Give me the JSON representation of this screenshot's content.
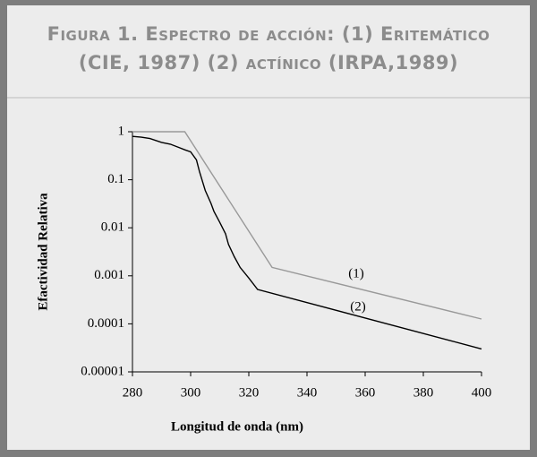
{
  "chart_data": {
    "type": "line",
    "title": [
      "Figura 1. Espectro de acción: (1) Eritemático",
      "(CIE, 1987) (2) actínico (IRPA,1989)"
    ],
    "xlabel": "Longitud de onda (nm)",
    "ylabel": "Efactividad Relativa",
    "xlim": [
      280,
      400
    ],
    "xticks": [
      280,
      300,
      320,
      340,
      360,
      380,
      400
    ],
    "ylim": [
      1e-05,
      1
    ],
    "yticks": [
      1,
      0.1,
      0.01,
      0.001,
      0.0001,
      1e-05
    ],
    "log_y": true,
    "series": [
      {
        "name": "(1)",
        "color": "#999999",
        "x": [
          280,
          298,
          328,
          400
        ],
        "values": [
          1,
          1,
          0.0015,
          0.000126
        ]
      },
      {
        "name": "(2)",
        "color": "#000000",
        "x": [
          280,
          283,
          286,
          290,
          293,
          296,
          298,
          300,
          302,
          303,
          305,
          307,
          308,
          310,
          312,
          313,
          315,
          317,
          320,
          323,
          400
        ],
        "values": [
          0.8,
          0.77,
          0.72,
          0.6,
          0.55,
          0.47,
          0.42,
          0.38,
          0.26,
          0.15,
          0.06,
          0.032,
          0.022,
          0.013,
          0.0075,
          0.0045,
          0.0025,
          0.0015,
          0.0009,
          0.00052,
          3e-05
        ]
      }
    ]
  }
}
